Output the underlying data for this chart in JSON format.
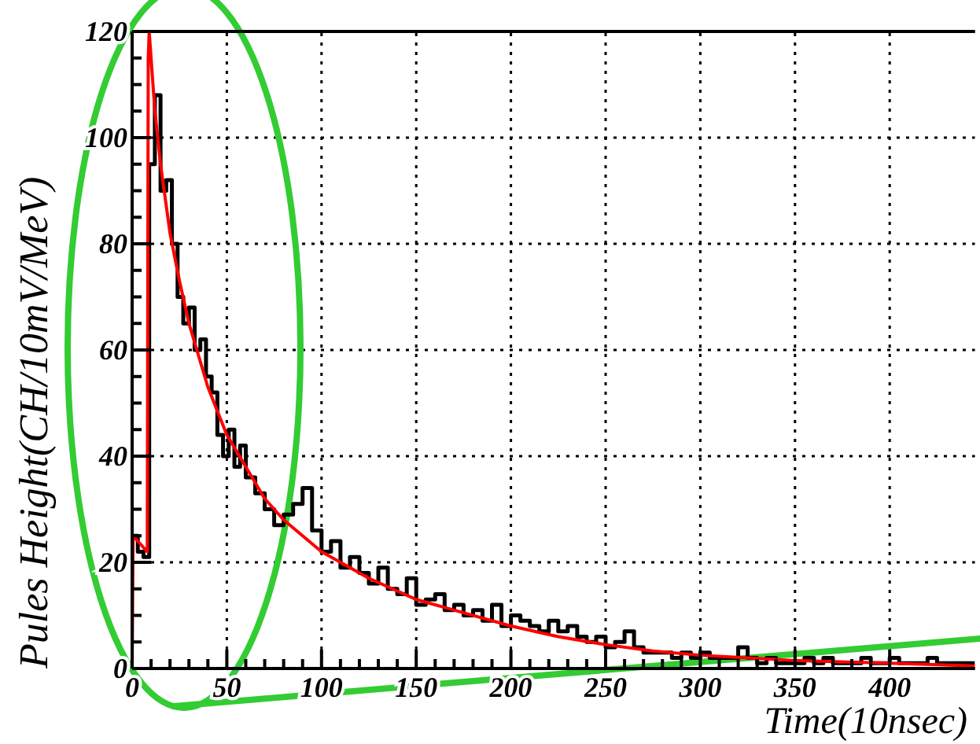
{
  "chart_data": {
    "type": "step",
    "xlabel": "Time(10nsec)",
    "ylabel": "Pules Height(CH/10mV/MeV)",
    "xlim": [
      0,
      445
    ],
    "ylim": [
      0,
      120
    ],
    "xticks": [
      0,
      50,
      100,
      150,
      200,
      250,
      300,
      350,
      400
    ],
    "yticks": [
      0,
      20,
      40,
      60,
      80,
      100,
      120
    ],
    "grid": true,
    "marker": "none",
    "series": [
      {
        "color": "#000000",
        "x": [
          0,
          3,
          6,
          9,
          12,
          15,
          18,
          21,
          24,
          27,
          30,
          33,
          36,
          39,
          42,
          45,
          48,
          51,
          54,
          57,
          60,
          65,
          70,
          75,
          80,
          85,
          90,
          95,
          100,
          105,
          110,
          115,
          120,
          125,
          130,
          135,
          140,
          145,
          150,
          155,
          160,
          165,
          170,
          175,
          180,
          185,
          190,
          195,
          200,
          205,
          210,
          215,
          220,
          225,
          230,
          235,
          240,
          245,
          250,
          255,
          260,
          265,
          270,
          275,
          280,
          285,
          290,
          295,
          300,
          305,
          310,
          315,
          320,
          325,
          330,
          335,
          340,
          345,
          350,
          355,
          360,
          365,
          370,
          375,
          380,
          385,
          390,
          395,
          400,
          405,
          410,
          415,
          420,
          425,
          430,
          435,
          440,
          445
        ],
        "values": [
          25,
          22,
          21,
          95,
          108,
          90,
          92,
          80,
          70,
          65,
          68,
          60,
          62,
          55,
          52,
          44,
          40,
          45,
          38,
          42,
          36,
          33,
          30,
          27,
          29,
          31,
          34,
          26,
          22,
          24,
          19,
          21,
          18,
          16,
          19,
          15,
          14,
          17,
          12,
          13,
          14,
          11,
          12,
          10,
          11,
          9,
          12,
          8,
          10,
          9,
          8,
          7,
          9,
          7,
          8,
          6,
          5,
          6,
          4,
          5,
          7,
          4,
          3,
          3,
          3,
          2,
          3,
          2,
          3,
          2,
          2,
          2,
          4,
          2,
          1,
          2,
          1,
          1,
          1,
          2,
          1,
          2,
          1,
          1,
          1,
          2,
          1,
          1,
          2,
          1,
          1,
          1,
          2,
          1,
          1,
          1,
          1,
          1
        ]
      },
      {
        "type": "line",
        "color": "#ff0000",
        "x": [
          0,
          0.5,
          8,
          8.5,
          9,
          12,
          15,
          20,
          25,
          30,
          40,
          50,
          60,
          70,
          80,
          90,
          100,
          110,
          125,
          150,
          175,
          200,
          225,
          250,
          275,
          300,
          325,
          350,
          400,
          445
        ],
        "values": [
          0,
          25,
          22,
          115,
          120,
          105,
          95,
          82,
          73,
          65,
          53,
          44,
          38,
          32,
          28,
          25,
          22,
          20,
          17,
          13,
          10.5,
          8,
          6,
          4.5,
          3.3,
          2.5,
          2,
          1.5,
          1,
          0.5
        ]
      }
    ]
  }
}
